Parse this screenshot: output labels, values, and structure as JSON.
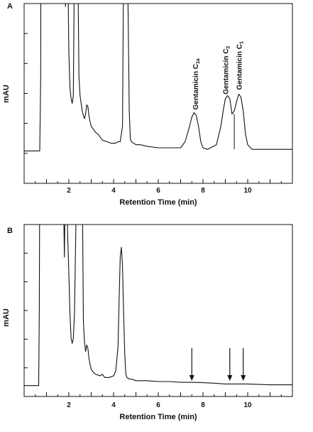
{
  "chart_data": [
    {
      "type": "line",
      "panel_label": "A",
      "xlabel": "Retention Time (min)",
      "ylabel": "mAU",
      "xlim": [
        0,
        12
      ],
      "xticks": [
        2,
        4,
        6,
        8,
        10
      ],
      "grid": false,
      "series": [
        {
          "x": [
            0,
            0.7,
            0.74,
            0.75,
            0.9,
            1.2,
            1.5,
            1.7,
            1.8,
            1.85,
            1.9,
            1.95,
            2.0,
            2.05,
            2.1,
            2.15,
            2.2,
            2.25,
            2.3,
            2.33,
            2.37,
            2.4,
            2.45,
            2.5,
            2.55,
            2.6,
            2.65,
            2.7,
            2.75,
            2.8,
            2.85,
            2.9,
            2.95,
            3.0,
            3.1,
            3.2,
            3.3,
            3.5,
            3.7,
            3.9,
            4.1,
            4.2,
            4.3,
            4.4,
            4.45,
            4.5,
            4.55,
            4.6,
            4.65,
            4.7,
            4.75,
            4.8,
            4.9,
            5.0,
            5.2,
            5.5,
            6.0,
            6.5,
            7.0,
            7.2,
            7.4,
            7.5,
            7.6,
            7.7,
            7.8,
            7.9,
            8.0,
            8.2,
            8.6,
            8.8,
            8.9,
            9.0,
            9.1,
            9.2,
            9.3,
            9.4,
            9.5,
            9.6,
            9.7,
            9.8,
            9.9,
            10.0,
            10.2,
            10.6,
            11.0,
            12.0
          ],
          "y": [
            0.04,
            0.04,
            0.5,
            1.3,
            1.3,
            1.3,
            1.3,
            1.3,
            1.3,
            0.98,
            1.3,
            1.3,
            0.68,
            0.45,
            0.38,
            0.35,
            0.4,
            1.3,
            1.3,
            1.3,
            1.3,
            1.3,
            0.53,
            0.4,
            0.35,
            0.3,
            0.27,
            0.25,
            0.28,
            0.34,
            0.33,
            0.27,
            0.23,
            0.2,
            0.18,
            0.16,
            0.15,
            0.11,
            0.1,
            0.09,
            0.09,
            0.1,
            0.1,
            0.2,
            1.3,
            1.3,
            1.3,
            1.3,
            0.95,
            0.3,
            0.12,
            0.1,
            0.09,
            0.08,
            0.08,
            0.07,
            0.06,
            0.06,
            0.06,
            0.1,
            0.2,
            0.26,
            0.29,
            0.27,
            0.2,
            0.1,
            0.06,
            0.05,
            0.08,
            0.2,
            0.3,
            0.38,
            0.4,
            0.38,
            0.28,
            0.3,
            0.36,
            0.41,
            0.39,
            0.3,
            0.15,
            0.08,
            0.05,
            0.05,
            0.05,
            0.05
          ]
        }
      ],
      "annotations": [
        {
          "text": "Gentamicin C",
          "subscript": "1a",
          "x": 7.65
        },
        {
          "text": "Gentamicin C",
          "subscript": "2",
          "x": 9.0
        },
        {
          "text": "Gentamicin C",
          "subscript": "1",
          "x": 9.6
        }
      ]
    },
    {
      "type": "line",
      "panel_label": "B",
      "xlabel": "Retention Time (min)",
      "ylabel": "mAU",
      "xlim": [
        0,
        12
      ],
      "xticks": [
        2,
        4,
        6,
        8,
        10
      ],
      "grid": false,
      "series": [
        {
          "x": [
            0,
            0.65,
            0.68,
            0.7,
            0.85,
            1.2,
            1.5,
            1.7,
            1.75,
            1.8,
            1.85,
            1.9,
            1.95,
            2.0,
            2.05,
            2.1,
            2.15,
            2.2,
            2.25,
            2.3,
            2.35,
            2.4,
            2.45,
            2.5,
            2.55,
            2.6,
            2.65,
            2.7,
            2.75,
            2.8,
            2.85,
            2.9,
            2.95,
            3.0,
            3.1,
            3.2,
            3.4,
            3.5,
            3.6,
            3.8,
            4.0,
            4.1,
            4.2,
            4.25,
            4.3,
            4.35,
            4.4,
            4.45,
            4.5,
            4.55,
            4.6,
            4.7,
            4.8,
            5.0,
            5.5,
            6.0,
            6.5,
            7.0,
            7.5,
            8.0,
            8.5,
            9.0,
            10.0,
            11.0,
            12.0
          ],
          "y": [
            0.01,
            0.01,
            0.5,
            1.3,
            1.3,
            1.3,
            1.3,
            1.3,
            1.3,
            0.8,
            1.3,
            1.3,
            0.92,
            0.7,
            0.45,
            0.3,
            0.27,
            0.3,
            0.45,
            0.85,
            1.3,
            1.3,
            1.3,
            1.3,
            1.3,
            1.3,
            0.4,
            0.28,
            0.22,
            0.26,
            0.24,
            0.18,
            0.14,
            0.11,
            0.09,
            0.08,
            0.07,
            0.08,
            0.06,
            0.06,
            0.07,
            0.1,
            0.25,
            0.55,
            0.8,
            0.86,
            0.75,
            0.45,
            0.2,
            0.08,
            0.06,
            0.05,
            0.05,
            0.04,
            0.04,
            0.035,
            0.035,
            0.03,
            0.03,
            0.028,
            0.025,
            0.02,
            0.02,
            0.015,
            0.015
          ]
        }
      ],
      "arrows": [
        7.5,
        9.2,
        9.8
      ]
    }
  ]
}
